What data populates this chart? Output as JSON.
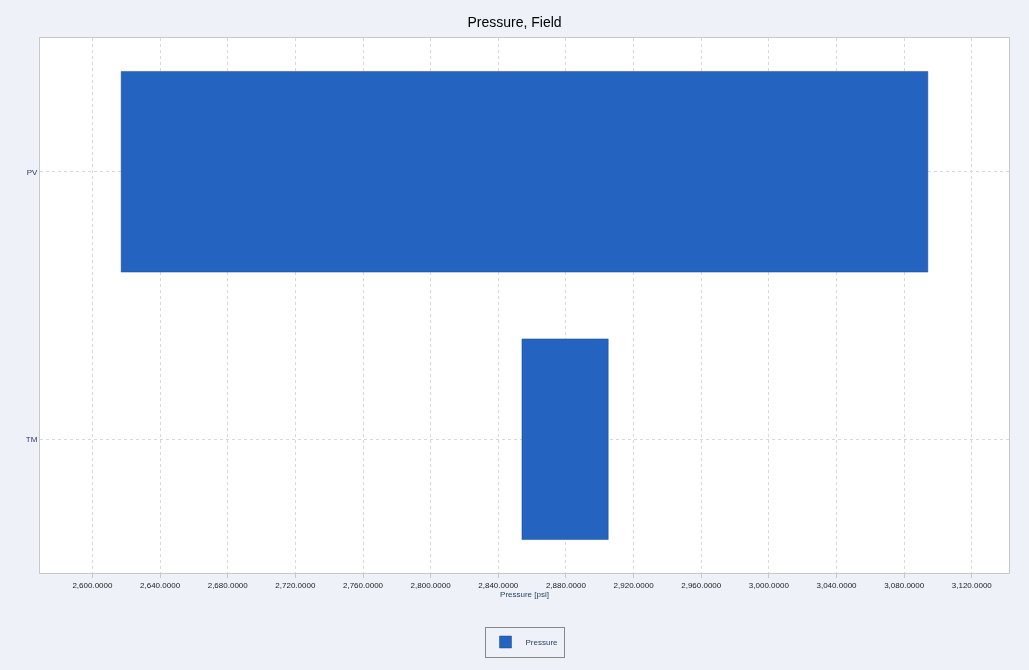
{
  "chart_data": {
    "type": "bar",
    "title": "Pressure, Field",
    "xlabel": "Pressure [psi]",
    "orientation": "horizontal",
    "categories": [
      "PV",
      "TM"
    ],
    "series": [
      {
        "name": "Pressure",
        "color": "#2563c0",
        "values": [
          477,
          51
        ],
        "base": [
          2617,
          2854
        ]
      }
    ],
    "xlim": [
      2569,
      3142
    ],
    "xticks": [
      {
        "value": 2600,
        "label": "2,600.0000"
      },
      {
        "value": 2640,
        "label": "2,640.0000"
      },
      {
        "value": 2680,
        "label": "2,680.0000"
      },
      {
        "value": 2720,
        "label": "2,720.0000"
      },
      {
        "value": 2760,
        "label": "2,760.0000"
      },
      {
        "value": 2800,
        "label": "2,800.0000"
      },
      {
        "value": 2840,
        "label": "2,840.0000"
      },
      {
        "value": 2880,
        "label": "2,880.0000"
      },
      {
        "value": 2920,
        "label": "2,920.0000"
      },
      {
        "value": 2960,
        "label": "2,960.0000"
      },
      {
        "value": 3000,
        "label": "3,000.0000"
      },
      {
        "value": 3040,
        "label": "3,040.0000"
      },
      {
        "value": 3080,
        "label": "3,080.0000"
      },
      {
        "value": 3120,
        "label": "3,120.0000"
      }
    ],
    "grid": true,
    "legend": "bottom"
  }
}
